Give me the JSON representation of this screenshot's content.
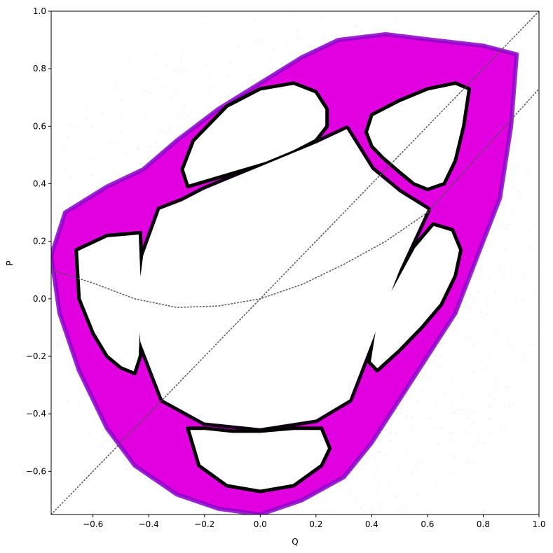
{
  "chart_data": {
    "type": "scatter",
    "title": "",
    "xlabel": "Q",
    "ylabel": "P",
    "xlim": [
      -0.75,
      1.0
    ],
    "ylim": [
      -0.75,
      1.0
    ],
    "xticks": [
      -0.6,
      -0.4,
      -0.2,
      0.0,
      0.2,
      0.4,
      0.6,
      0.8,
      1.0
    ],
    "yticks": [
      -0.6,
      -0.4,
      -0.2,
      0.0,
      0.2,
      0.4,
      0.6,
      0.8,
      1.0
    ],
    "xtick_labels": [
      "−0.6",
      "−0.4",
      "−0.2",
      "0.0",
      "0.2",
      "0.4",
      "0.6",
      "0.8",
      "1.0"
    ],
    "ytick_labels": [
      "−0.6",
      "−0.4",
      "−0.2",
      "0.0",
      "0.2",
      "0.4",
      "0.6",
      "0.8",
      "1.0"
    ],
    "grid": false,
    "legend": "none",
    "colors": {
      "chaotic_sea": "#e000e0",
      "chaotic_edge": "#8a00c8",
      "sparse_points": "#cc2255",
      "inner_boundary": "#000000",
      "reference_curves": "#555555"
    },
    "series": [
      {
        "kind": "inner_region_boundary",
        "x": [
          -0.36,
          -0.28,
          -0.2,
          -0.1,
          0.0,
          0.1,
          0.2,
          0.31,
          0.4,
          0.5,
          0.6,
          0.5,
          0.4,
          0.32,
          0.2,
          0.0,
          -0.2,
          -0.35,
          -0.43,
          -0.44,
          -0.42,
          -0.36
        ],
        "y": [
          0.31,
          0.34,
          0.38,
          0.42,
          0.46,
          0.5,
          0.54,
          0.59,
          0.45,
          0.37,
          0.31,
          0.1,
          -0.15,
          -0.35,
          -0.42,
          -0.45,
          -0.43,
          -0.35,
          -0.15,
          0.0,
          0.15,
          0.31
        ]
      },
      {
        "kind": "island",
        "name": "",
        "x": [
          -0.26,
          -0.12,
          0.02,
          0.12,
          0.2,
          0.24,
          0.24,
          0.2,
          0.12,
          0.0,
          -0.12,
          -0.24,
          -0.28,
          -0.26
        ],
        "y": [
          0.39,
          0.43,
          0.47,
          0.51,
          0.55,
          0.6,
          0.66,
          0.72,
          0.75,
          0.73,
          0.67,
          0.55,
          0.45,
          0.39
        ]
      },
      {
        "kind": "island",
        "name": "",
        "x": [
          0.4,
          0.5,
          0.6,
          0.7,
          0.75,
          0.73,
          0.7,
          0.66,
          0.6,
          0.55,
          0.5,
          0.44,
          0.4,
          0.38,
          0.4
        ],
        "y": [
          0.64,
          0.69,
          0.73,
          0.75,
          0.73,
          0.6,
          0.48,
          0.4,
          0.38,
          0.4,
          0.44,
          0.49,
          0.53,
          0.58,
          0.64
        ]
      },
      {
        "kind": "island",
        "name": "",
        "x": [
          -0.43,
          -0.55,
          -0.66,
          -0.65,
          -0.6,
          -0.55,
          -0.5,
          -0.45,
          -0.43,
          -0.42,
          -0.43
        ],
        "y": [
          0.23,
          0.22,
          0.17,
          0.0,
          -0.12,
          -0.2,
          -0.24,
          -0.26,
          -0.2,
          0.0,
          0.23
        ]
      },
      {
        "kind": "island",
        "name": "",
        "x": [
          0.62,
          0.69,
          0.72,
          0.7,
          0.65,
          0.58,
          0.5,
          0.42,
          0.39,
          0.41,
          0.46,
          0.55,
          0.62
        ],
        "y": [
          0.26,
          0.24,
          0.17,
          0.08,
          -0.02,
          -0.1,
          -0.18,
          -0.25,
          -0.22,
          -0.1,
          0.02,
          0.18,
          0.26
        ]
      },
      {
        "kind": "island",
        "name": "",
        "x": [
          -0.26,
          -0.2,
          -0.1,
          0.0,
          0.12,
          0.22,
          0.25,
          0.22,
          0.12,
          0.0,
          -0.12,
          -0.22,
          -0.26
        ],
        "y": [
          -0.45,
          -0.45,
          -0.46,
          -0.46,
          -0.45,
          -0.45,
          -0.52,
          -0.58,
          -0.65,
          -0.67,
          -0.65,
          -0.58,
          -0.45
        ]
      },
      {
        "kind": "chaotic_outer_boundary",
        "x": [
          -0.75,
          -0.7,
          -0.55,
          -0.42,
          -0.3,
          -0.15,
          0.0,
          0.15,
          0.28,
          0.45,
          0.62,
          0.8,
          0.92,
          0.9,
          0.86,
          0.78,
          0.7,
          0.6,
          0.5,
          0.4,
          0.3,
          0.15,
          0.0,
          -0.15,
          -0.3,
          -0.45,
          -0.55,
          -0.65,
          -0.72,
          -0.75
        ],
        "y": [
          0.15,
          0.3,
          0.39,
          0.45,
          0.55,
          0.66,
          0.75,
          0.84,
          0.9,
          0.92,
          0.9,
          0.88,
          0.85,
          0.6,
          0.35,
          0.15,
          -0.05,
          -0.2,
          -0.35,
          -0.5,
          -0.62,
          -0.7,
          -0.75,
          -0.73,
          -0.68,
          -0.58,
          -0.45,
          -0.25,
          -0.05,
          0.15
        ]
      },
      {
        "kind": "reference_line",
        "x": [
          -0.75,
          1.0
        ],
        "y": [
          -0.75,
          1.0
        ]
      },
      {
        "kind": "reference_line",
        "x": [
          0.6,
          1.0
        ],
        "y": [
          0.3,
          0.73
        ]
      },
      {
        "kind": "reference_curve",
        "x": [
          -0.75,
          -0.6,
          -0.45,
          -0.3,
          -0.15,
          0.0,
          0.15,
          0.3,
          0.45,
          0.6
        ],
        "y": [
          0.1,
          0.055,
          0.0,
          -0.03,
          -0.025,
          0.0,
          0.05,
          0.12,
          0.2,
          0.3
        ]
      }
    ]
  }
}
